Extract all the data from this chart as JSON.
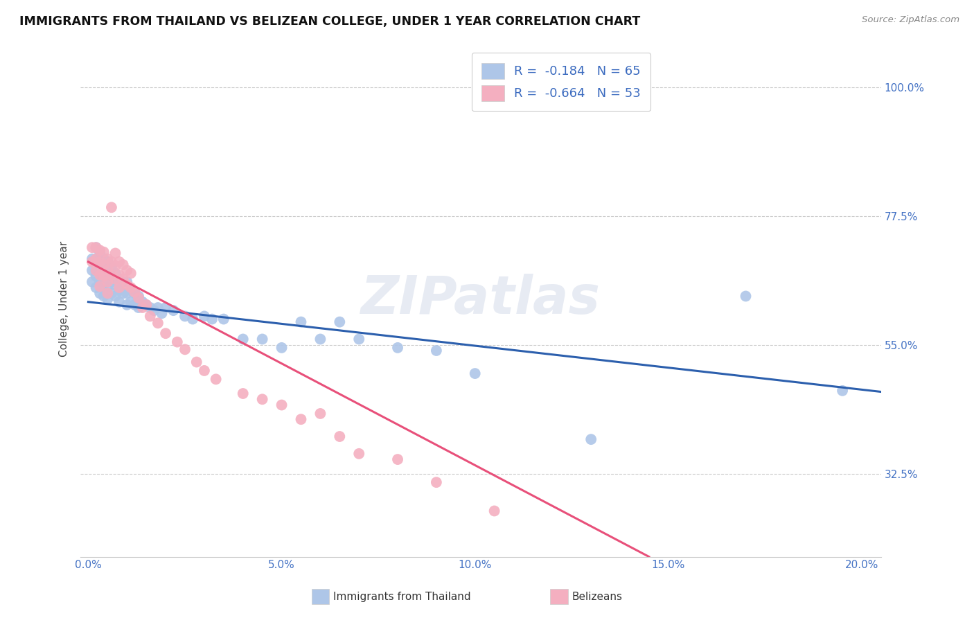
{
  "title": "IMMIGRANTS FROM THAILAND VS BELIZEAN COLLEGE, UNDER 1 YEAR CORRELATION CHART",
  "source": "Source: ZipAtlas.com",
  "ylabel": "College, Under 1 year",
  "ytick_vals": [
    0.325,
    0.55,
    0.775,
    1.0
  ],
  "ytick_labels": [
    "32.5%",
    "55.0%",
    "77.5%",
    "100.0%"
  ],
  "xtick_vals": [
    0.0,
    0.05,
    0.1,
    0.15,
    0.2
  ],
  "xtick_labels": [
    "0.0%",
    "5.0%",
    "10.0%",
    "15.0%",
    "20.0%"
  ],
  "xmin": -0.002,
  "xmax": 0.205,
  "ymin": 0.18,
  "ymax": 1.08,
  "legend1_label": "Immigrants from Thailand",
  "legend1_text": "R =  -0.184   N = 65",
  "legend2_label": "Belizeans",
  "legend2_text": "R =  -0.664   N = 53",
  "blue_color": "#aec6e8",
  "blue_line_color": "#2c5fad",
  "pink_color": "#f4afc0",
  "pink_line_color": "#e8507a",
  "watermark": "ZIPatlas",
  "blue_line_x0": 0.0,
  "blue_line_x1": 0.205,
  "blue_line_y0": 0.625,
  "blue_line_y1": 0.468,
  "pink_line_x0": 0.0,
  "pink_line_x1": 0.145,
  "pink_line_y0": 0.695,
  "pink_line_y1": 0.18,
  "blue_x": [
    0.001,
    0.001,
    0.001,
    0.002,
    0.002,
    0.002,
    0.002,
    0.003,
    0.003,
    0.003,
    0.003,
    0.004,
    0.004,
    0.004,
    0.004,
    0.005,
    0.005,
    0.005,
    0.005,
    0.006,
    0.006,
    0.006,
    0.007,
    0.007,
    0.007,
    0.008,
    0.008,
    0.008,
    0.009,
    0.009,
    0.01,
    0.01,
    0.01,
    0.011,
    0.011,
    0.012,
    0.012,
    0.013,
    0.013,
    0.014,
    0.015,
    0.016,
    0.017,
    0.018,
    0.019,
    0.02,
    0.022,
    0.025,
    0.027,
    0.03,
    0.032,
    0.035,
    0.04,
    0.045,
    0.05,
    0.055,
    0.06,
    0.065,
    0.07,
    0.08,
    0.09,
    0.1,
    0.13,
    0.17,
    0.195
  ],
  "blue_y": [
    0.7,
    0.68,
    0.66,
    0.72,
    0.695,
    0.67,
    0.65,
    0.71,
    0.685,
    0.66,
    0.64,
    0.7,
    0.675,
    0.655,
    0.635,
    0.695,
    0.67,
    0.65,
    0.63,
    0.685,
    0.66,
    0.64,
    0.675,
    0.655,
    0.635,
    0.665,
    0.645,
    0.625,
    0.66,
    0.64,
    0.66,
    0.64,
    0.62,
    0.645,
    0.625,
    0.64,
    0.62,
    0.635,
    0.615,
    0.625,
    0.62,
    0.615,
    0.61,
    0.615,
    0.605,
    0.615,
    0.61,
    0.6,
    0.595,
    0.6,
    0.595,
    0.595,
    0.56,
    0.56,
    0.545,
    0.59,
    0.56,
    0.59,
    0.56,
    0.545,
    0.54,
    0.5,
    0.385,
    0.635,
    0.47
  ],
  "pink_x": [
    0.001,
    0.001,
    0.002,
    0.002,
    0.002,
    0.003,
    0.003,
    0.003,
    0.003,
    0.004,
    0.004,
    0.004,
    0.005,
    0.005,
    0.005,
    0.005,
    0.006,
    0.006,
    0.006,
    0.007,
    0.007,
    0.007,
    0.008,
    0.008,
    0.008,
    0.009,
    0.009,
    0.01,
    0.01,
    0.011,
    0.011,
    0.012,
    0.013,
    0.014,
    0.015,
    0.016,
    0.018,
    0.02,
    0.023,
    0.025,
    0.028,
    0.03,
    0.033,
    0.04,
    0.045,
    0.05,
    0.055,
    0.06,
    0.065,
    0.07,
    0.08,
    0.09,
    0.105
  ],
  "pink_y": [
    0.72,
    0.695,
    0.72,
    0.7,
    0.68,
    0.715,
    0.695,
    0.672,
    0.652,
    0.712,
    0.69,
    0.67,
    0.7,
    0.68,
    0.66,
    0.64,
    0.79,
    0.695,
    0.672,
    0.71,
    0.688,
    0.665,
    0.695,
    0.672,
    0.65,
    0.69,
    0.665,
    0.68,
    0.655,
    0.675,
    0.65,
    0.642,
    0.632,
    0.615,
    0.62,
    0.6,
    0.588,
    0.57,
    0.555,
    0.542,
    0.52,
    0.505,
    0.49,
    0.465,
    0.455,
    0.445,
    0.42,
    0.43,
    0.39,
    0.36,
    0.35,
    0.31,
    0.26
  ]
}
